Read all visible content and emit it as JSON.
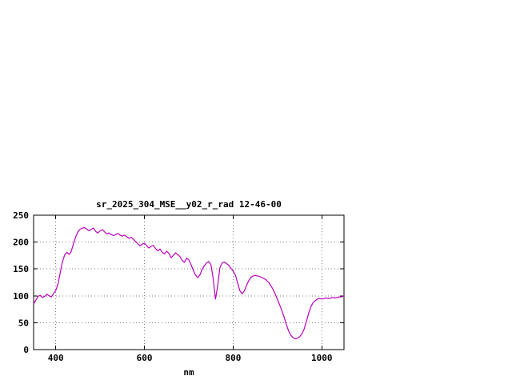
{
  "window": {
    "background_color": "#ffffff"
  },
  "chart_data": {
    "type": "line",
    "title": "sr_2025_304_MSE__y02_r_rad 12-46-00",
    "xlabel": "nm",
    "ylabel": "",
    "xlim": [
      350,
      1050
    ],
    "ylim": [
      0,
      250
    ],
    "xticks": [
      400,
      600,
      800,
      1000
    ],
    "yticks": [
      0,
      50,
      100,
      150,
      200,
      250
    ],
    "grid": true,
    "legend": "none",
    "line_color": "#bb00bb",
    "border_color": "#000000",
    "grid_color": "#808080",
    "x": [
      350,
      355,
      360,
      365,
      370,
      375,
      380,
      385,
      390,
      395,
      400,
      405,
      410,
      415,
      420,
      425,
      430,
      435,
      440,
      445,
      450,
      455,
      460,
      465,
      470,
      475,
      480,
      485,
      490,
      495,
      500,
      505,
      510,
      515,
      520,
      525,
      530,
      535,
      540,
      545,
      550,
      555,
      560,
      565,
      570,
      575,
      580,
      585,
      590,
      595,
      600,
      605,
      610,
      615,
      620,
      625,
      630,
      635,
      640,
      645,
      650,
      655,
      660,
      665,
      670,
      675,
      680,
      685,
      690,
      695,
      700,
      705,
      710,
      715,
      720,
      725,
      730,
      735,
      740,
      745,
      750,
      755,
      760,
      765,
      770,
      775,
      780,
      785,
      790,
      795,
      800,
      805,
      810,
      815,
      820,
      825,
      830,
      835,
      840,
      845,
      850,
      855,
      860,
      865,
      870,
      875,
      880,
      885,
      890,
      895,
      900,
      905,
      910,
      915,
      920,
      925,
      930,
      935,
      940,
      945,
      950,
      955,
      960,
      965,
      970,
      975,
      980,
      985,
      990,
      995,
      1000,
      1005,
      1010,
      1015,
      1020,
      1025,
      1030,
      1035,
      1040,
      1045,
      1050
    ],
    "y": [
      85,
      92,
      99,
      101,
      97,
      99,
      103,
      100,
      98,
      104,
      110,
      122,
      143,
      163,
      176,
      181,
      177,
      183,
      197,
      210,
      219,
      224,
      226,
      227,
      224,
      221,
      224,
      226,
      220,
      217,
      221,
      223,
      219,
      215,
      217,
      214,
      212,
      214,
      216,
      213,
      211,
      213,
      210,
      207,
      209,
      205,
      201,
      197,
      193,
      196,
      198,
      193,
      189,
      192,
      194,
      188,
      184,
      187,
      181,
      178,
      183,
      179,
      171,
      175,
      180,
      177,
      173,
      166,
      162,
      170,
      167,
      158,
      148,
      139,
      134,
      139,
      149,
      156,
      161,
      164,
      158,
      132,
      94,
      117,
      152,
      161,
      163,
      160,
      157,
      151,
      146,
      139,
      124,
      110,
      104,
      109,
      119,
      128,
      134,
      137,
      138,
      137,
      136,
      134,
      132,
      129,
      125,
      119,
      112,
      103,
      93,
      83,
      72,
      60,
      47,
      35,
      27,
      22,
      20,
      21,
      24,
      29,
      38,
      52,
      67,
      79,
      87,
      91,
      94,
      95,
      94,
      95,
      96,
      95,
      96,
      97,
      96,
      97,
      98,
      98,
      100
    ]
  }
}
